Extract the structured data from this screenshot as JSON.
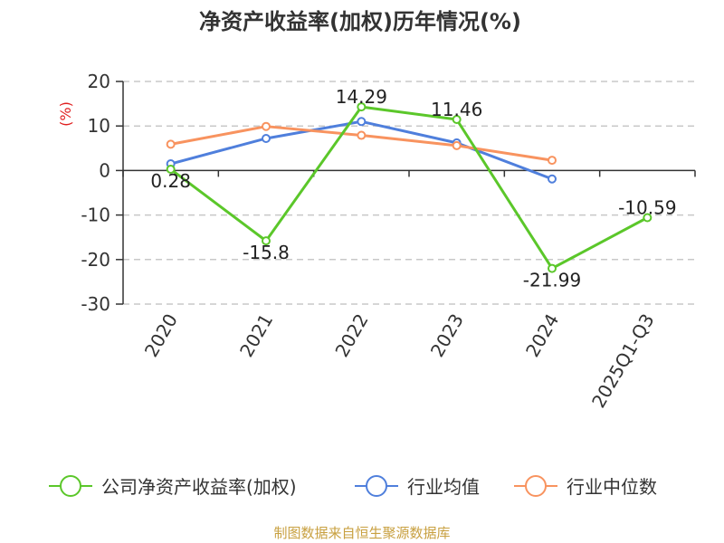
{
  "chart_data": {
    "type": "line",
    "title": "净资产收益率(加权)历年情况(%)",
    "ylabel": "(%)",
    "categories": [
      "2020",
      "2021",
      "2022",
      "2023",
      "2024",
      "2025Q1-Q3"
    ],
    "ylim": [
      -30,
      20
    ],
    "yticks": [
      20,
      10,
      0,
      -10,
      -20,
      -30
    ],
    "ytick_labels": [
      "20",
      "10",
      "0",
      "-10",
      "-20",
      "-30"
    ],
    "grid": true,
    "legend_position": "bottom",
    "series": [
      {
        "name": "公司净资产收益率(加权)",
        "color": "#5bc72a",
        "values": [
          0.28,
          -15.8,
          14.29,
          11.46,
          -21.99,
          -10.59
        ],
        "labels": [
          "0.28",
          "-15.8",
          "14.29",
          "11.46",
          "-21.99",
          "-10.59"
        ]
      },
      {
        "name": "行业均值",
        "color": "#4f7fdc",
        "values": [
          1.5,
          7.2,
          11.0,
          6.2,
          -1.9,
          null
        ],
        "labels": []
      },
      {
        "name": "行业中位数",
        "color": "#f8935f",
        "values": [
          5.9,
          9.9,
          7.9,
          5.6,
          2.3,
          null
        ],
        "labels": []
      }
    ],
    "source": "制图数据来自恒生聚源数据库",
    "source_color": "#c8a040",
    "unit_color": "#e02020"
  }
}
